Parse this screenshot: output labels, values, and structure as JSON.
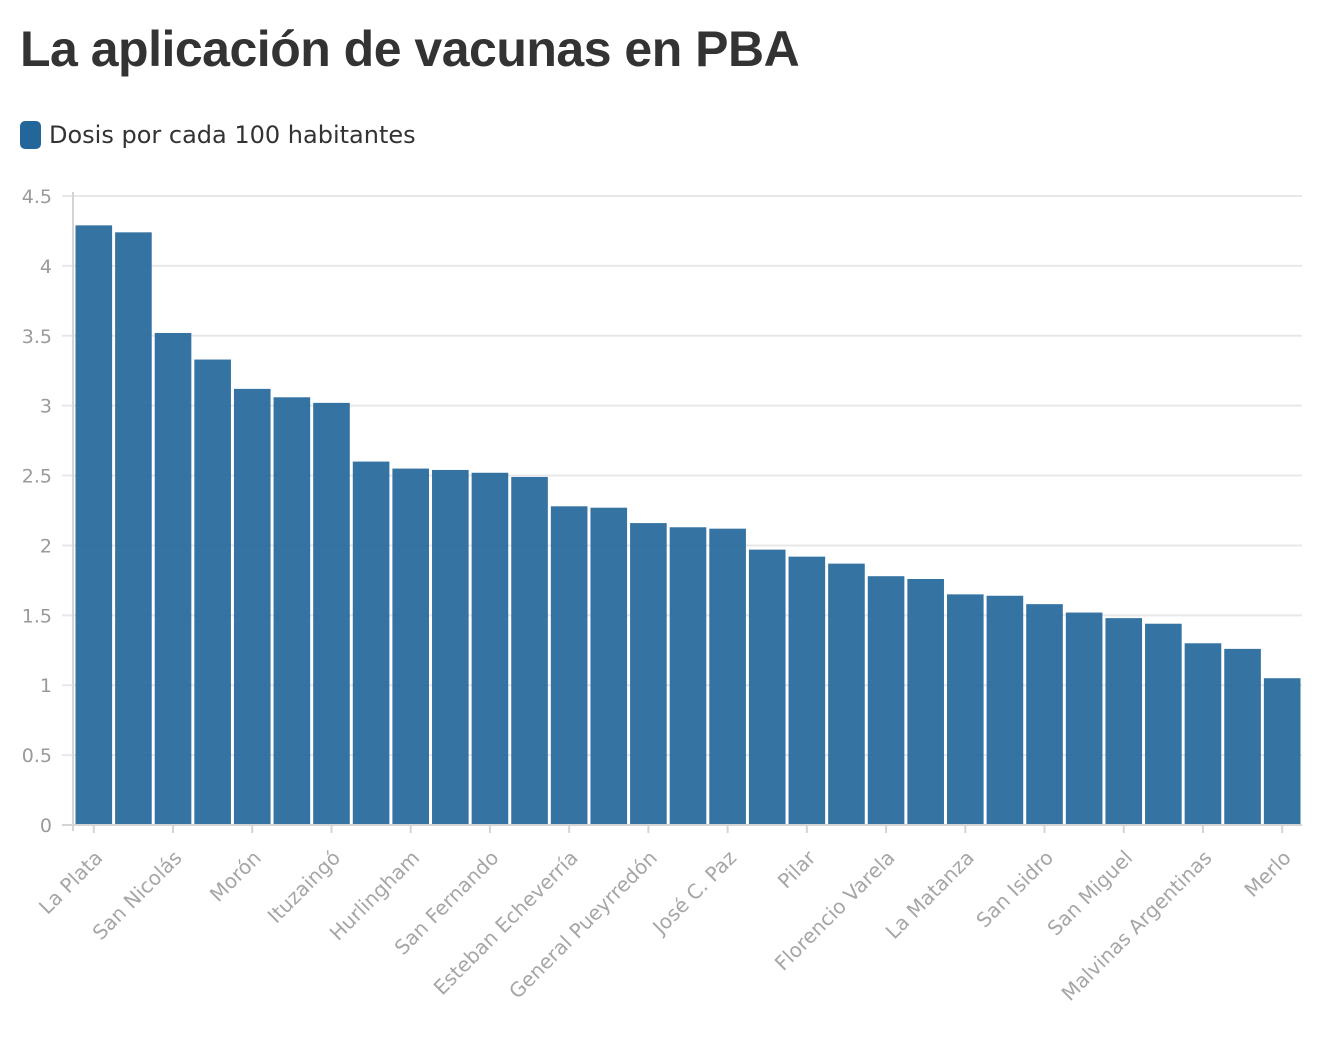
{
  "title": "La aplicación de vacunas en PBA",
  "legend": {
    "label": "Dosis por cada 100 habitantes",
    "color": "#23679A"
  },
  "chart_data": {
    "type": "bar",
    "title": "La aplicación de vacunas en PBA",
    "xlabel": "",
    "ylabel": "",
    "ylim": [
      0,
      4.5
    ],
    "yticks": [
      0,
      0.5,
      1,
      1.5,
      2,
      2.5,
      3,
      3.5,
      4,
      4.5
    ],
    "ytick_labels": [
      "0",
      "0.5",
      "1",
      "1.5",
      "2",
      "2.5",
      "3",
      "3.5",
      "4",
      "4.5"
    ],
    "grid": true,
    "legend_position": "top-left",
    "bar_color": "#23679A",
    "categories": [
      "La Plata",
      "",
      "San Nicolás",
      "",
      "Morón",
      "",
      "Ituzaingó",
      "",
      "Hurlingham",
      "",
      "San Fernando",
      "",
      "Esteban Echeverría",
      "",
      "General Pueyrredón",
      "",
      "José C. Paz",
      "",
      "Pilar",
      "",
      "Florencio Varela",
      "",
      "La Matanza",
      "",
      "San Isidro",
      "",
      "San Miguel",
      "",
      "Malvinas Argentinas",
      "",
      "Merlo"
    ],
    "series": [
      {
        "name": "Dosis por cada 100 habitantes",
        "values": [
          4.29,
          4.24,
          3.52,
          3.33,
          3.12,
          3.06,
          3.02,
          2.6,
          2.55,
          2.54,
          2.52,
          2.49,
          2.28,
          2.27,
          2.16,
          2.13,
          2.12,
          1.97,
          1.92,
          1.87,
          1.78,
          1.76,
          1.65,
          1.64,
          1.58,
          1.52,
          1.48,
          1.44,
          1.3,
          1.26,
          1.05
        ]
      }
    ]
  }
}
